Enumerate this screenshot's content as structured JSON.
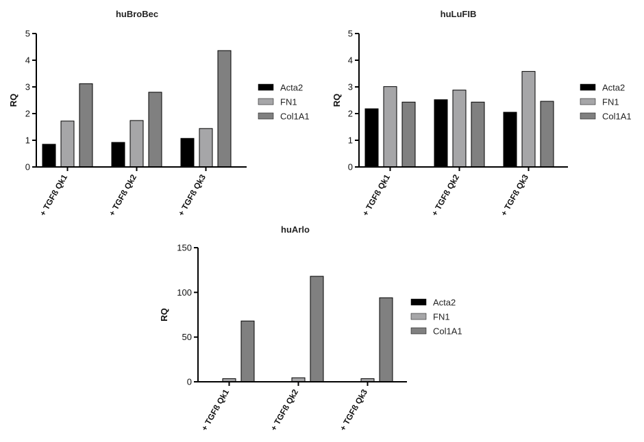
{
  "chart_data": [
    {
      "type": "bar",
      "title": "huBroBec",
      "ylabel": "RQ",
      "ylim": [
        0,
        5
      ],
      "yticks": [
        0,
        1,
        2,
        3,
        4,
        5
      ],
      "categories": [
        "+ TGFß Qk1",
        "+ TGFß Qk2",
        "+ TGFß Qk3"
      ],
      "series": [
        {
          "name": "Acta2",
          "values": [
            0.85,
            0.92,
            1.07
          ]
        },
        {
          "name": "FN1",
          "values": [
            1.72,
            1.74,
            1.44
          ]
        },
        {
          "name": "Col1A1",
          "values": [
            3.12,
            2.8,
            4.36
          ]
        }
      ],
      "legend": "right"
    },
    {
      "type": "bar",
      "title": "huLuFIB",
      "ylabel": "RQ",
      "ylim": [
        0,
        5
      ],
      "yticks": [
        0,
        1,
        2,
        3,
        4,
        5
      ],
      "categories": [
        "+ TGFß Qk1",
        "+ TGFß Qk2",
        "+ TGFß Qk3"
      ],
      "series": [
        {
          "name": "Acta2",
          "values": [
            2.18,
            2.52,
            2.05
          ]
        },
        {
          "name": "FN1",
          "values": [
            3.01,
            2.88,
            3.58
          ]
        },
        {
          "name": "Col1A1",
          "values": [
            2.43,
            2.43,
            2.46
          ]
        }
      ],
      "legend": "right"
    },
    {
      "type": "bar",
      "title": "huArlo",
      "ylabel": "RQ",
      "ylim": [
        0,
        150
      ],
      "yticks": [
        0,
        50,
        100,
        150
      ],
      "categories": [
        "+ TGFß Qk1",
        "+ TGFß Qk2",
        "+ TGFß Qk3"
      ],
      "series": [
        {
          "name": "Acta2",
          "values": [
            0.3,
            0.3,
            0.3
          ]
        },
        {
          "name": "FN1",
          "values": [
            3.5,
            4.5,
            3.5
          ]
        },
        {
          "name": "Col1A1",
          "values": [
            68,
            118,
            94
          ]
        }
      ],
      "legend": "right"
    }
  ],
  "colors": {
    "Acta2": "#000000",
    "FN1": "#a6a6a8",
    "Col1A1": "#808080"
  }
}
